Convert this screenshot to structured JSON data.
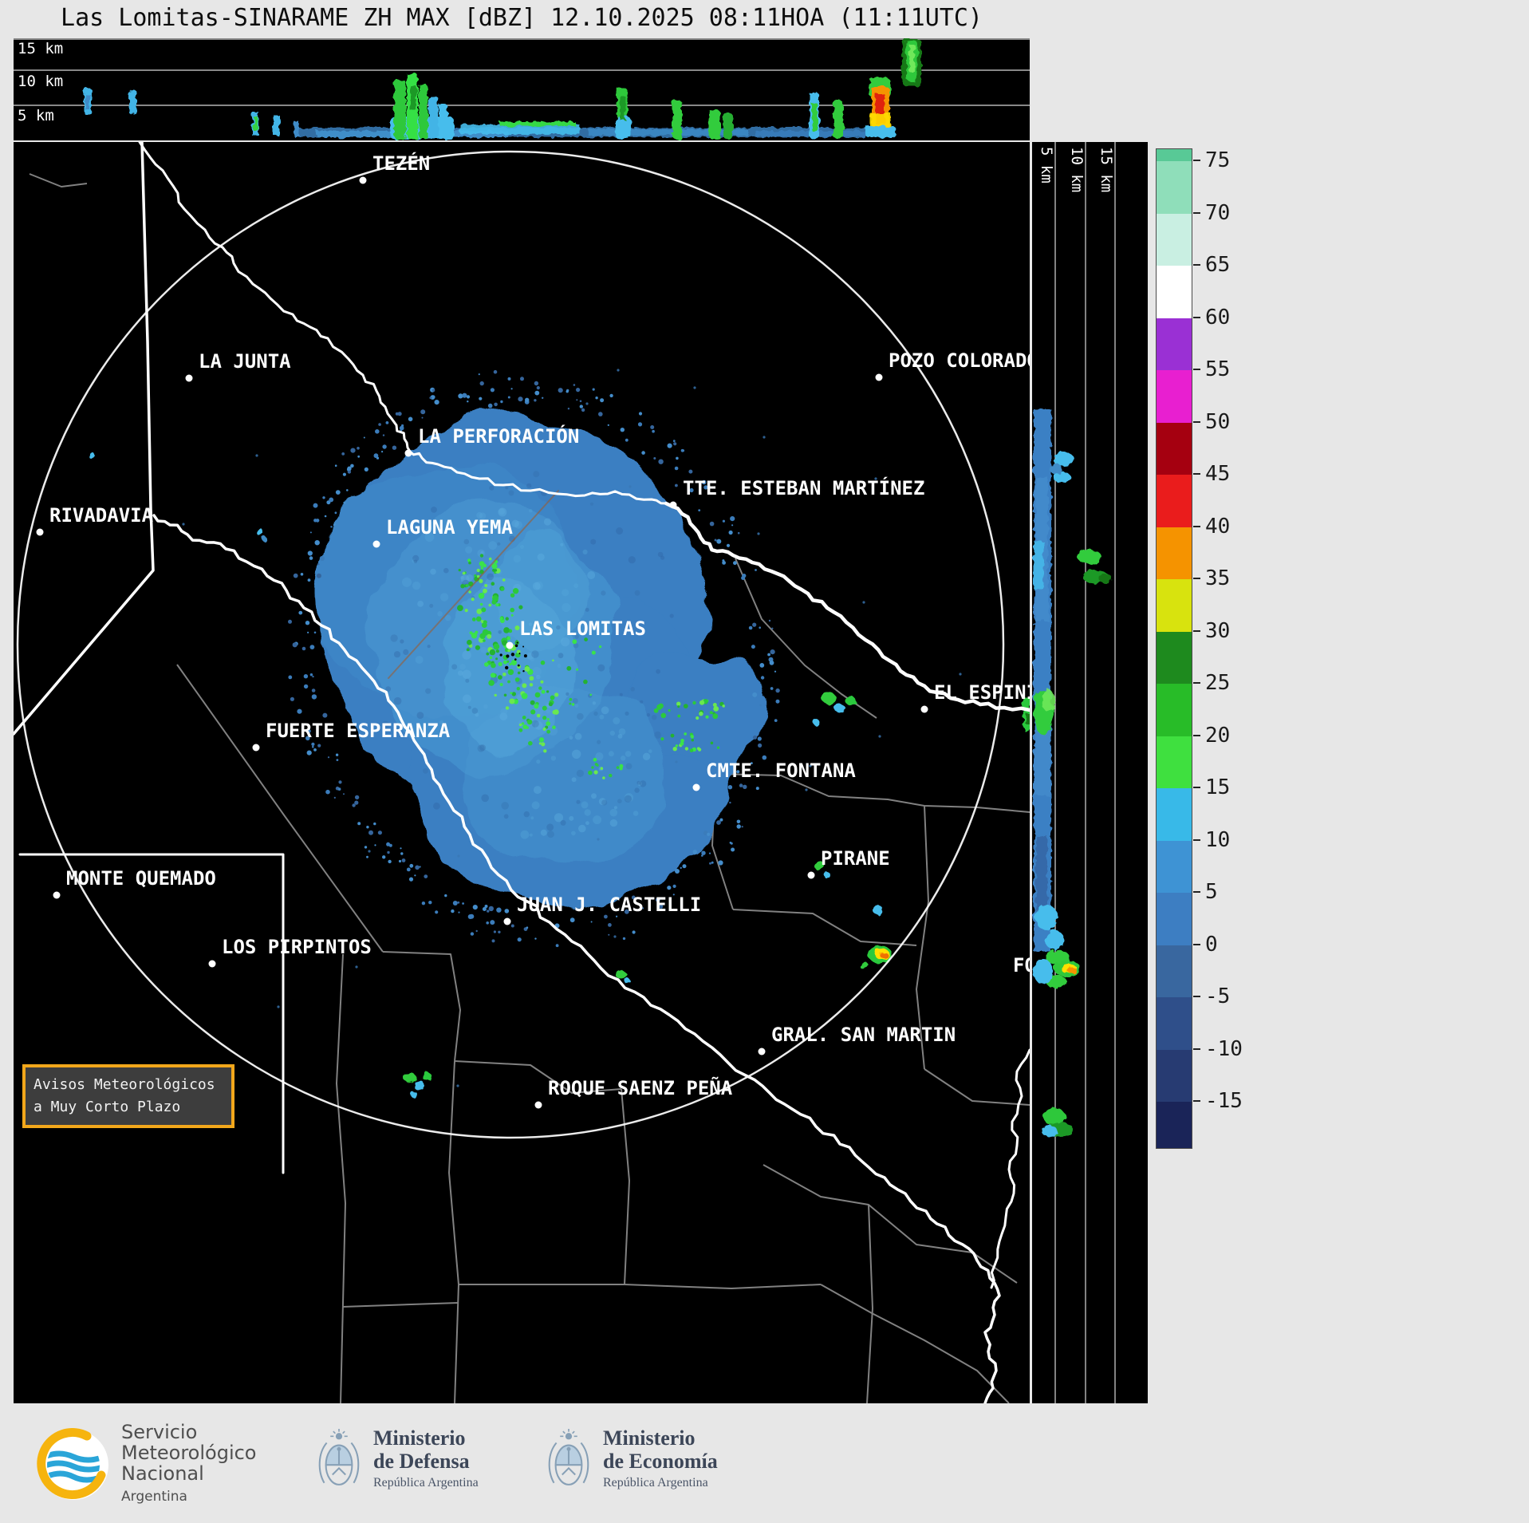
{
  "title": "Las Lomitas-SINARAME ZH MAX [dBZ] 12.10.2025 08:11HOA (11:11UTC)",
  "top_profile": {
    "axis_labels": [
      "15 km",
      "10 km",
      "5 km"
    ]
  },
  "right_profile": {
    "axis_labels": [
      "5 km",
      "10 km",
      "15 km"
    ]
  },
  "map": {
    "cities": [
      {
        "label": "TEZÉN"
      },
      {
        "label": "LA JUNTA"
      },
      {
        "label": "POZO COLORADO"
      },
      {
        "label": "LA PERFORACIÓN"
      },
      {
        "label": "TTE. ESTEBAN MARTÍNEZ"
      },
      {
        "label": "RIVADAVIA"
      },
      {
        "label": "LAGUNA YEMA"
      },
      {
        "label": "LAS LOMITAS"
      },
      {
        "label": "EL ESPINILLO"
      },
      {
        "label": "FUERTE ESPERANZA"
      },
      {
        "label": "CMTE. FONTANA"
      },
      {
        "label": "PIRANE"
      },
      {
        "label": "MONTE QUEMADO"
      },
      {
        "label": "JUAN J. CASTELLI"
      },
      {
        "label": "LOS PIRPINTOS"
      },
      {
        "label": "GRAL. SAN MARTIN"
      },
      {
        "label": "ROQUE SAENZ PEÑA"
      },
      {
        "label": "FORMOSA"
      }
    ],
    "warning_box": {
      "line1": "Avisos Meteorológicos",
      "line2": "a Muy Corto Plazo",
      "border_color": "#f2a71b"
    }
  },
  "colorbar": {
    "ticks": [
      "75",
      "70",
      "65",
      "60",
      "55",
      "50",
      "45",
      "40",
      "35",
      "30",
      "25",
      "20",
      "15",
      "10",
      "5",
      "0",
      "-5",
      "-10",
      "-15"
    ],
    "segment_colors": [
      "#58c996",
      "#8fdeba",
      "#c9efe2",
      "#ffffff",
      "#9a30d4",
      "#e81fd0",
      "#a50010",
      "#ea1c1c",
      "#f59300",
      "#d8e30e",
      "#1e8a1e",
      "#28bc28",
      "#3fe03f",
      "#38b9e8",
      "#3e93d4",
      "#3d7ec2",
      "#39679f",
      "#2f4f8a",
      "#273b72",
      "#1a2458"
    ]
  },
  "footer": {
    "smn": {
      "line1": "Servicio",
      "line2": "Meteorológico",
      "line3": "Nacional",
      "line4": "Argentina"
    },
    "defensa": {
      "name_line1": "Ministerio",
      "name_line2": "de Defensa",
      "sub": "República Argentina"
    },
    "economia": {
      "name_line1": "Ministerio",
      "name_line2": "de Economía",
      "sub": "República Argentina"
    }
  }
}
